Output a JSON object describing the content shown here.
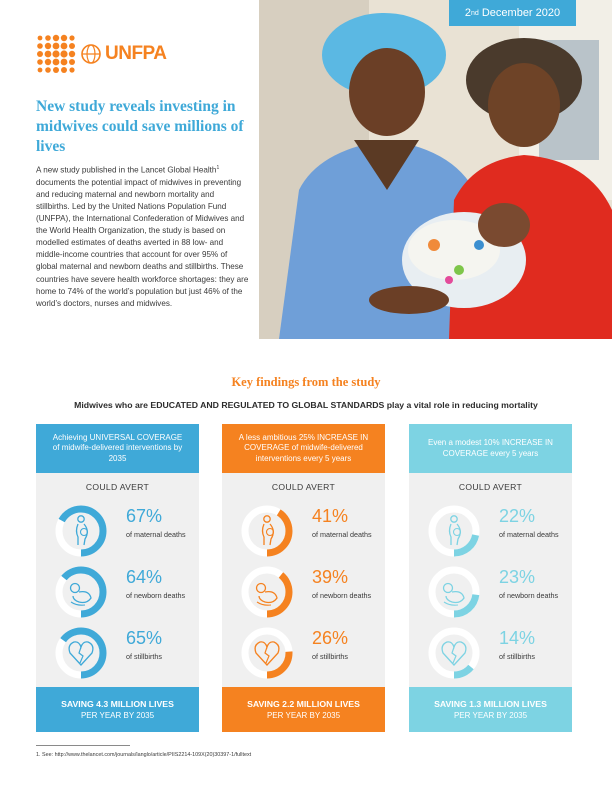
{
  "brand": {
    "logo_text": "UNFPA",
    "primary_color": "#f58220",
    "accent_color": "#3fa9d8"
  },
  "date": {
    "day": "2",
    "suffix": "nd",
    "rest": " December 2020"
  },
  "headline": "New study reveals investing in midwives could save millions of lives",
  "intro": {
    "lead": "A new study published in the Lancet Global Health",
    "footnote_ref": "1",
    "body": " documents the potential impact of midwives in preventing and reducing maternal and newborn mortality and stillbirths. Led by the United Nations Population Fund (UNFPA), the International Confederation of Midwives and the World Health Organization, the study is based on modelled estimates of deaths averted in 88 low- and middle-income countries that account for over 95% of global maternal and newborn deaths and stillbirths. These countries have severe health workforce shortages: they are home to 74% of the world’s population but just 46% of the world’s doctors, nurses and midwives."
  },
  "findings": {
    "title": "Key findings from the study",
    "subtitle": "Midwives who are EDUCATED AND REGULATED TO GLOBAL STANDARDS play a vital role in reducing mortality",
    "could_avert": "COULD AVERT",
    "columns": [
      {
        "heading": "Achieving UNIVERSAL COVERAGE of midwife-delivered interventions by 2035",
        "color": "#3fa9d8",
        "stats": [
          {
            "value": "67%",
            "fraction": 0.67,
            "label": "of maternal deaths",
            "icon": "pregnant-woman-icon"
          },
          {
            "value": "64%",
            "fraction": 0.64,
            "label": "of newborn deaths",
            "icon": "newborn-icon"
          },
          {
            "value": "65%",
            "fraction": 0.65,
            "label": "of stillbirths",
            "icon": "broken-heart-icon"
          }
        ],
        "saving": "SAVING 4.3 MILLION LIVES",
        "saving_sub": "PER YEAR BY 2035"
      },
      {
        "heading": "A less ambitious 25% INCREASE IN COVERAGE of midwife-delivered interventions every 5 years",
        "color": "#f58220",
        "stats": [
          {
            "value": "41%",
            "fraction": 0.41,
            "label": "of maternal deaths",
            "icon": "pregnant-woman-icon"
          },
          {
            "value": "39%",
            "fraction": 0.39,
            "label": "of newborn deaths",
            "icon": "newborn-icon"
          },
          {
            "value": "26%",
            "fraction": 0.26,
            "label": "of stillbirths",
            "icon": "broken-heart-icon"
          }
        ],
        "saving": "SAVING 2.2 MILLION LIVES",
        "saving_sub": "PER YEAR BY 2035"
      },
      {
        "heading": "Even a modest 10% INCREASE IN COVERAGE every 5 years",
        "color": "#7dd3e3",
        "stats": [
          {
            "value": "22%",
            "fraction": 0.22,
            "label": "of maternal deaths",
            "icon": "pregnant-woman-icon"
          },
          {
            "value": "23%",
            "fraction": 0.23,
            "label": "of newborn deaths",
            "icon": "newborn-icon"
          },
          {
            "value": "14%",
            "fraction": 0.14,
            "label": "of stillbirths",
            "icon": "broken-heart-icon"
          }
        ],
        "saving": "SAVING 1.3 MILLION LIVES",
        "saving_sub": "PER YEAR BY 2035"
      }
    ]
  },
  "footnote": "1. See: http://www.thelancet.com/journals/langlo/article/PIIS2214-109X(20)30397-1/fulltext"
}
